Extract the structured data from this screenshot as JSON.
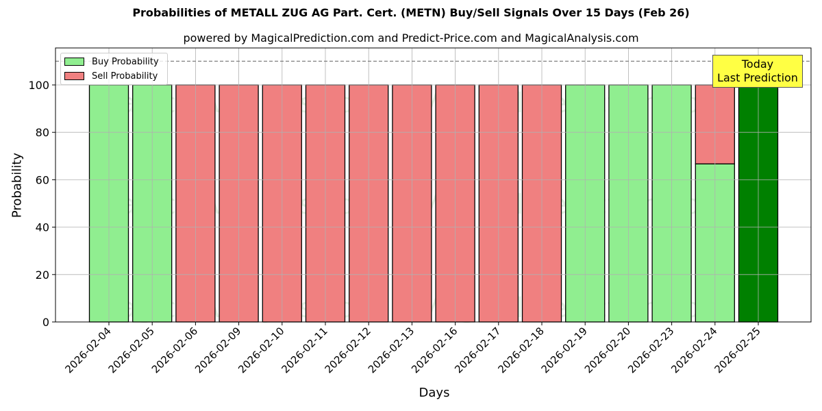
{
  "chart_data": {
    "type": "bar",
    "stacked": true,
    "title": "Probabilities of METALL ZUG AG Part. Cert. (METN) Buy/Sell Signals Over 15 Days (Feb 26)",
    "subtitle": "powered by MagicalPrediction.com and Predict-Price.com and MagicalAnalysis.com",
    "xlabel": "Days",
    "ylabel": "Probability",
    "ylim": [
      0,
      115
    ],
    "yticks": [
      0,
      20,
      40,
      60,
      80,
      100
    ],
    "grid": true,
    "reference_line": {
      "y": 110,
      "style": "dashed",
      "color": "#808080"
    },
    "legend_position": "upper left",
    "categories": [
      "2026-02-04",
      "2026-02-05",
      "2026-02-06",
      "2026-02-09",
      "2026-02-10",
      "2026-02-11",
      "2026-02-12",
      "2026-02-13",
      "2026-02-16",
      "2026-02-17",
      "2026-02-18",
      "2026-02-19",
      "2026-02-20",
      "2026-02-23",
      "2026-02-24",
      "2026-02-25"
    ],
    "series": [
      {
        "name": "Buy Probability",
        "color": "#90ee90",
        "values": [
          100,
          100,
          0,
          0,
          0,
          0,
          0,
          0,
          0,
          0,
          0,
          100,
          100,
          100,
          66.7,
          100
        ]
      },
      {
        "name": "Sell Probability",
        "color": "#f08080",
        "values": [
          0,
          0,
          100,
          100,
          100,
          100,
          100,
          100,
          100,
          100,
          100,
          0,
          0,
          0,
          33.3,
          0
        ]
      }
    ],
    "highlight": {
      "category": "2026-02-25",
      "color": "#008000",
      "annotation": [
        "Today",
        "Last Prediction"
      ]
    },
    "annotation_color": "#ffff44"
  },
  "legend": {
    "buy": "Buy Probability",
    "sell": "Sell Probability"
  },
  "annotation": {
    "line1": "Today",
    "line2": "Last Prediction"
  },
  "watermarks": [
    "MagicalAnalysis.com",
    "MagicalPrediction.com"
  ]
}
